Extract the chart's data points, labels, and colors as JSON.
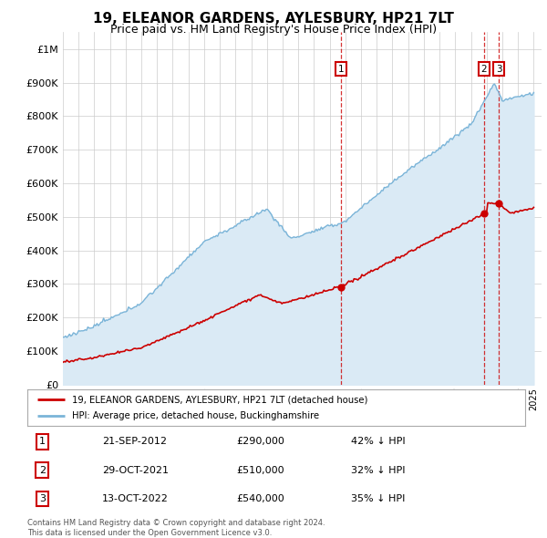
{
  "title": "19, ELEANOR GARDENS, AYLESBURY, HP21 7LT",
  "subtitle": "Price paid vs. HM Land Registry's House Price Index (HPI)",
  "title_fontsize": 11,
  "subtitle_fontsize": 9,
  "ylim": [
    0,
    1050000
  ],
  "yticks": [
    0,
    100000,
    200000,
    300000,
    400000,
    500000,
    600000,
    700000,
    800000,
    900000,
    1000000
  ],
  "ytick_labels": [
    "£0",
    "£100K",
    "£200K",
    "£300K",
    "£400K",
    "£500K",
    "£600K",
    "£700K",
    "£800K",
    "£900K",
    "£1M"
  ],
  "hpi_color": "#7ab4d8",
  "hpi_fill_color": "#daeaf5",
  "price_color": "#cc0000",
  "vline_color": "#cc0000",
  "sale_decimal": [
    2012.72,
    2021.83,
    2022.78
  ],
  "sale_prices": [
    290000,
    510000,
    540000
  ],
  "sale_labels": [
    "1",
    "2",
    "3"
  ],
  "legend_label_price": "19, ELEANOR GARDENS, AYLESBURY, HP21 7LT (detached house)",
  "legend_label_hpi": "HPI: Average price, detached house, Buckinghamshire",
  "table_rows": [
    {
      "num": "1",
      "date": "21-SEP-2012",
      "price": "£290,000",
      "hpi": "42% ↓ HPI"
    },
    {
      "num": "2",
      "date": "29-OCT-2021",
      "price": "£510,000",
      "hpi": "32% ↓ HPI"
    },
    {
      "num": "3",
      "date": "13-OCT-2022",
      "price": "£540,000",
      "hpi": "35% ↓ HPI"
    }
  ],
  "footer": "Contains HM Land Registry data © Crown copyright and database right 2024.\nThis data is licensed under the Open Government Licence v3.0.",
  "bg_color": "#ffffff",
  "grid_color": "#cccccc"
}
